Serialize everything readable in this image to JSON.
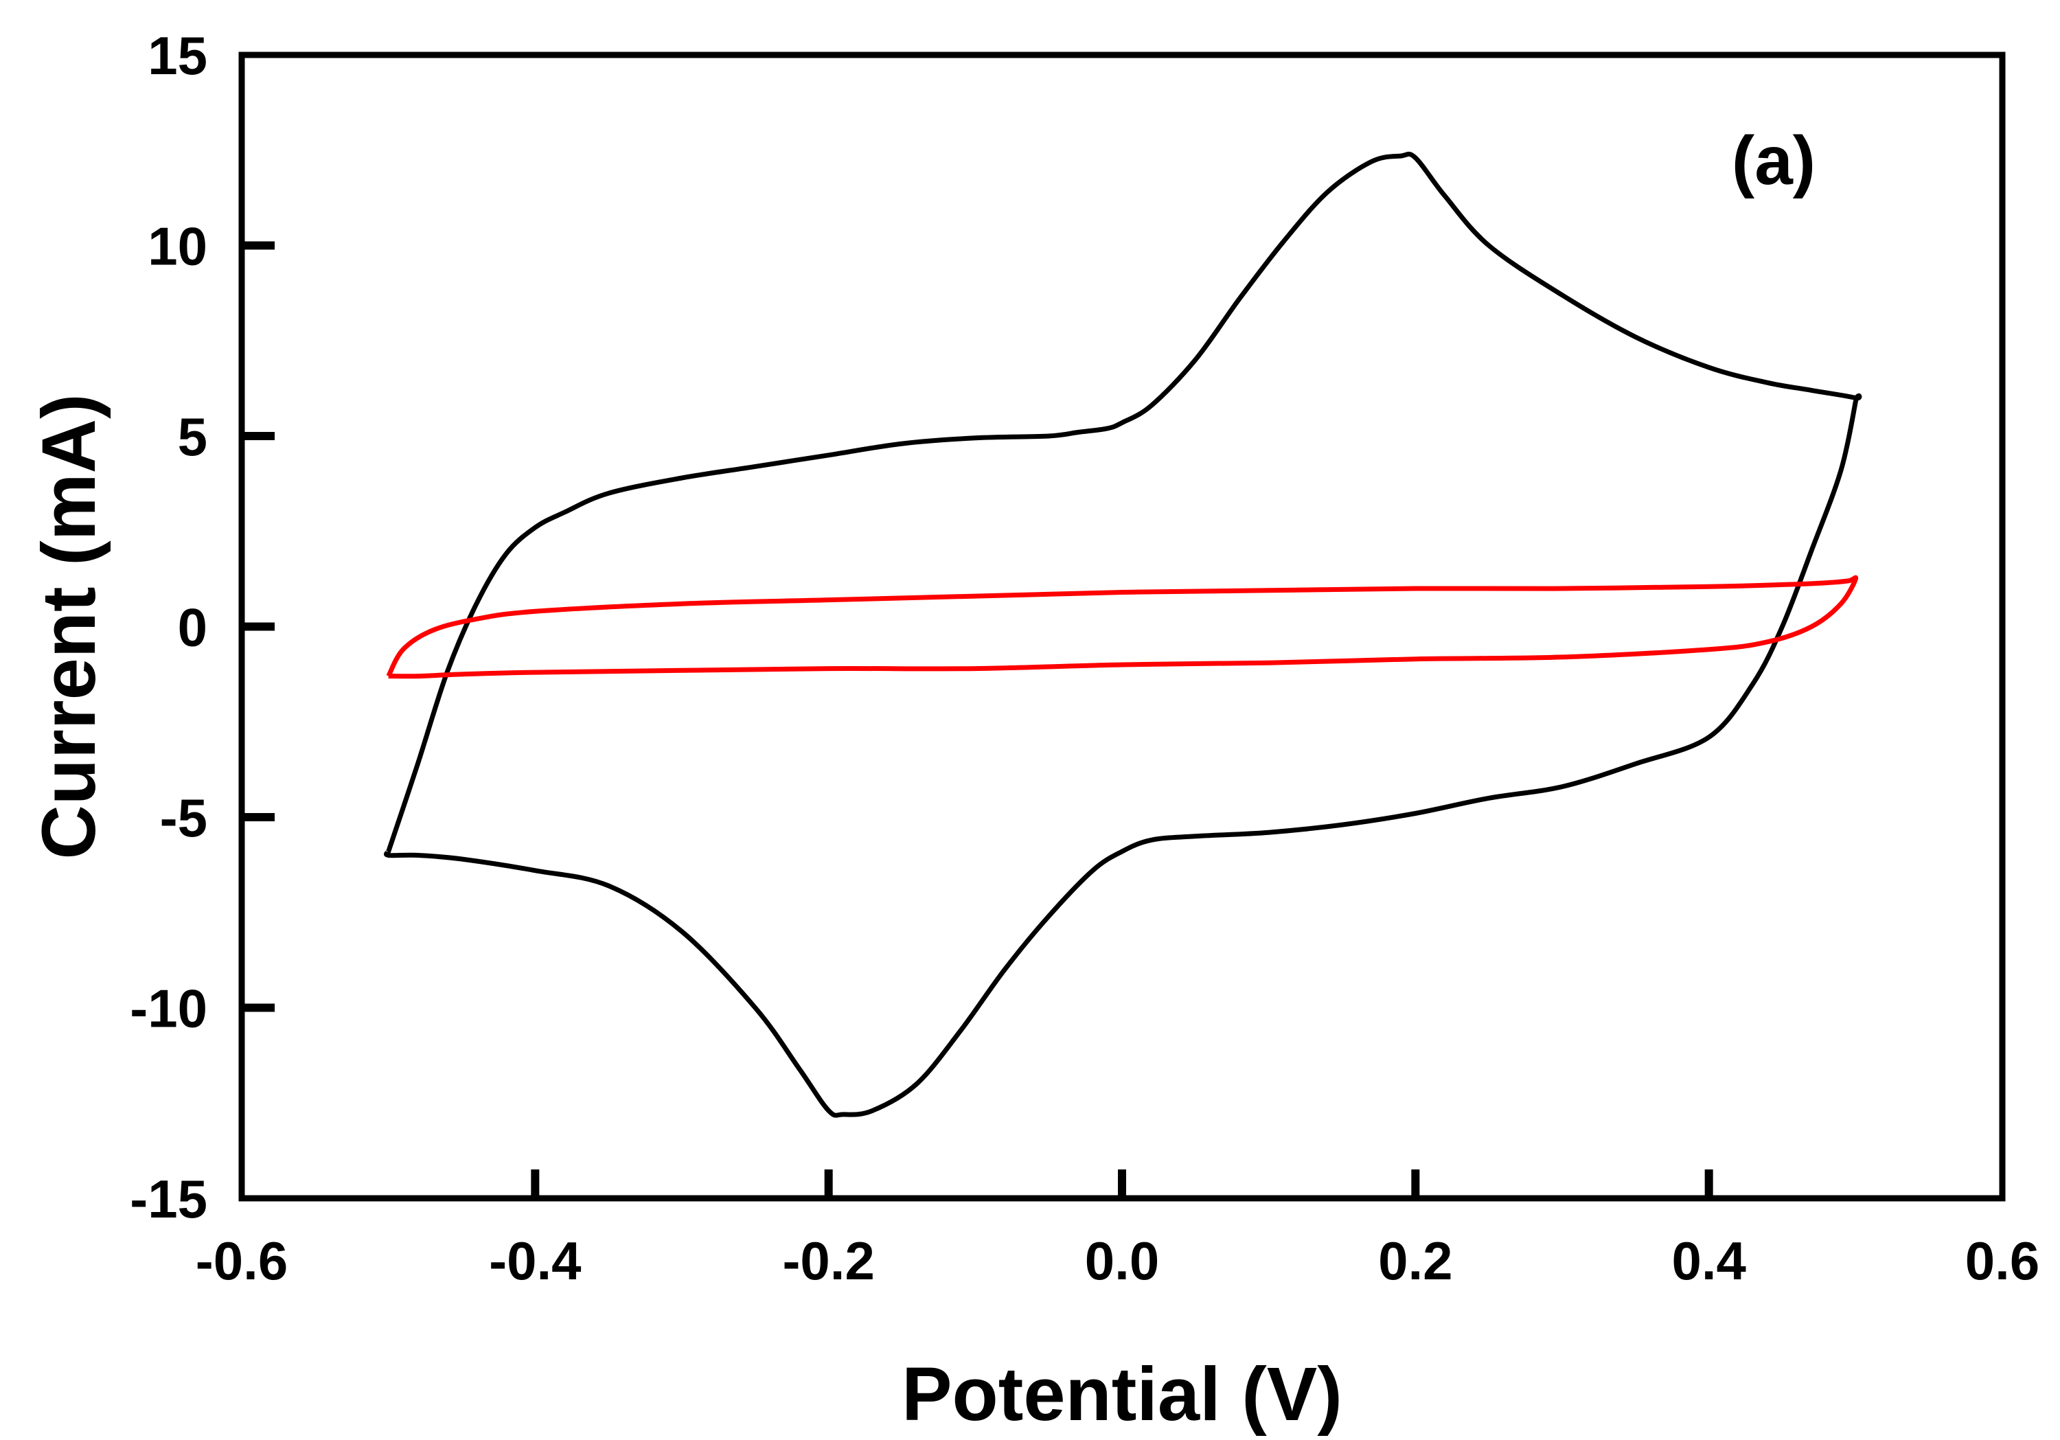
{
  "chart_data": {
    "type": "line",
    "title": "",
    "xlabel": "Potential (V)",
    "ylabel": "Current (mA)",
    "xlim": [
      -0.6,
      0.6
    ],
    "ylim": [
      -15,
      15
    ],
    "xticks": [
      -0.6,
      -0.4,
      -0.2,
      0.0,
      0.2,
      0.4,
      0.6
    ],
    "xtick_labels": [
      "-0.6",
      "-0.4",
      "-0.2",
      "0.0",
      "0.2",
      "0.4",
      "0.6"
    ],
    "yticks": [
      -15,
      -10,
      -5,
      0,
      5,
      10,
      15
    ],
    "ytick_labels": [
      "-15",
      "-10",
      "-5",
      "0",
      "5",
      "10",
      "15"
    ],
    "grid": false,
    "annotation": "(a)",
    "colors": {
      "black_curve": "#000000",
      "red_curve": "#ff0000",
      "frame": "#000000"
    },
    "series": [
      {
        "color": "#000000",
        "x": [
          -0.5,
          -0.48,
          -0.46,
          -0.44,
          -0.42,
          -0.4,
          -0.38,
          -0.35,
          -0.3,
          -0.25,
          -0.2,
          -0.15,
          -0.1,
          -0.05,
          -0.03,
          -0.01,
          0.0,
          0.02,
          0.05,
          0.08,
          0.11,
          0.14,
          0.17,
          0.19,
          0.2,
          0.22,
          0.25,
          0.3,
          0.35,
          0.4,
          0.44,
          0.47,
          0.5,
          0.5,
          0.49,
          0.47,
          0.45,
          0.43,
          0.4,
          0.35,
          0.3,
          0.25,
          0.2,
          0.15,
          0.1,
          0.05,
          0.02,
          0.0,
          -0.02,
          -0.05,
          -0.08,
          -0.11,
          -0.14,
          -0.17,
          -0.19,
          -0.2,
          -0.22,
          -0.25,
          -0.3,
          -0.35,
          -0.4,
          -0.45,
          -0.48,
          -0.5,
          -0.5
        ],
        "y": [
          -5.9,
          -3.6,
          -1.2,
          0.6,
          1.9,
          2.6,
          3.0,
          3.5,
          3.9,
          4.2,
          4.5,
          4.8,
          4.95,
          5.0,
          5.1,
          5.2,
          5.35,
          5.8,
          7.0,
          8.6,
          10.1,
          11.4,
          12.2,
          12.35,
          12.3,
          11.3,
          10.0,
          8.7,
          7.6,
          6.8,
          6.4,
          6.2,
          6.0,
          5.9,
          4.1,
          2.0,
          0.0,
          -1.5,
          -2.9,
          -3.6,
          -4.2,
          -4.5,
          -4.9,
          -5.2,
          -5.4,
          -5.5,
          -5.6,
          -5.9,
          -6.4,
          -7.6,
          -9.0,
          -10.6,
          -12.0,
          -12.7,
          -12.8,
          -12.7,
          -11.6,
          -10.0,
          -8.0,
          -6.8,
          -6.4,
          -6.1,
          -6.0,
          -6.0,
          -5.9
        ]
      },
      {
        "color": "#ff0000",
        "x": [
          -0.5,
          -0.49,
          -0.47,
          -0.44,
          -0.4,
          -0.3,
          -0.2,
          -0.1,
          0.0,
          0.1,
          0.2,
          0.3,
          0.4,
          0.45,
          0.48,
          0.495,
          0.5,
          0.49,
          0.47,
          0.44,
          0.4,
          0.3,
          0.2,
          0.1,
          0.0,
          -0.1,
          -0.2,
          -0.3,
          -0.4,
          -0.45,
          -0.48,
          -0.5
        ],
        "y": [
          -1.3,
          -0.6,
          -0.1,
          0.2,
          0.4,
          0.6,
          0.7,
          0.8,
          0.9,
          0.95,
          1.0,
          1.0,
          1.05,
          1.1,
          1.15,
          1.2,
          1.25,
          0.6,
          0.0,
          -0.4,
          -0.6,
          -0.8,
          -0.85,
          -0.95,
          -1.0,
          -1.1,
          -1.1,
          -1.15,
          -1.2,
          -1.25,
          -1.3,
          -1.3
        ]
      }
    ]
  }
}
